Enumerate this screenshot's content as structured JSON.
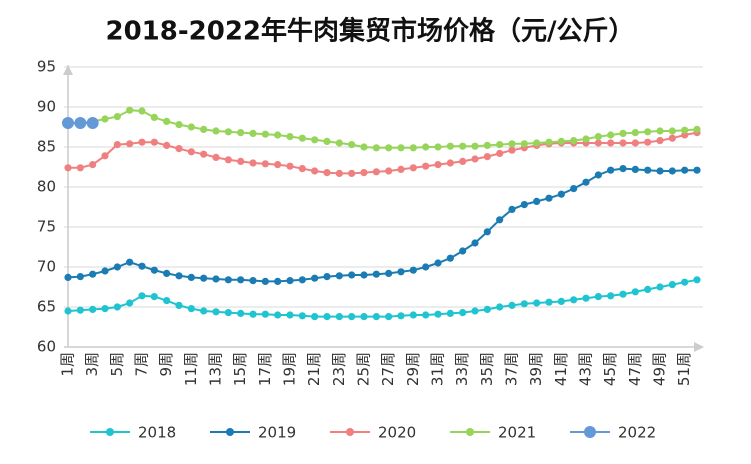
{
  "chart_data": {
    "type": "line",
    "title": "2018-2022年牛肉集贸市场价格（元/公斤）",
    "categories": [
      "1周",
      null,
      "3周",
      null,
      "5周",
      null,
      "7周",
      null,
      "9周",
      null,
      "11周",
      null,
      "13周",
      null,
      "15周",
      null,
      "17周",
      null,
      "19周",
      null,
      "21周",
      null,
      "23周",
      null,
      "25周",
      null,
      "27周",
      null,
      "29周",
      null,
      "31周",
      null,
      "33周",
      null,
      "35周",
      null,
      "37周",
      null,
      "39周",
      null,
      "41周",
      null,
      "43周",
      null,
      "45周",
      null,
      "47周",
      null,
      "49周",
      null,
      "51周",
      null
    ],
    "series": [
      {
        "name": "2018",
        "color": "#1fc4d0",
        "values": [
          64.5,
          64.6,
          64.7,
          64.8,
          65.0,
          65.5,
          66.4,
          66.3,
          65.8,
          65.2,
          64.8,
          64.5,
          64.4,
          64.3,
          64.2,
          64.1,
          64.1,
          64.0,
          64.0,
          63.9,
          63.8,
          63.8,
          63.8,
          63.8,
          63.8,
          63.8,
          63.8,
          63.9,
          64.0,
          64.0,
          64.1,
          64.2,
          64.3,
          64.5,
          64.7,
          65.0,
          65.2,
          65.4,
          65.5,
          65.6,
          65.7,
          65.9,
          66.1,
          66.3,
          66.4,
          66.6,
          66.9,
          67.2,
          67.5,
          67.8,
          68.1,
          68.4
        ]
      },
      {
        "name": "2019",
        "color": "#1b7bb3",
        "values": [
          68.7,
          68.8,
          69.1,
          69.5,
          70.0,
          70.6,
          70.1,
          69.6,
          69.2,
          68.9,
          68.7,
          68.6,
          68.5,
          68.4,
          68.4,
          68.3,
          68.2,
          68.2,
          68.3,
          68.4,
          68.6,
          68.8,
          68.9,
          69.0,
          69.0,
          69.1,
          69.2,
          69.4,
          69.6,
          70.0,
          70.5,
          71.1,
          72.0,
          73.0,
          74.4,
          75.9,
          77.2,
          77.8,
          78.2,
          78.6,
          79.1,
          79.8,
          80.6,
          81.5,
          82.1,
          82.3,
          82.2,
          82.1,
          82.0,
          82.0,
          82.1,
          82.1
        ]
      },
      {
        "name": "2020",
        "color": "#f08080",
        "values": [
          82.4,
          82.4,
          82.8,
          83.9,
          85.3,
          85.4,
          85.6,
          85.6,
          85.2,
          84.8,
          84.4,
          84.1,
          83.7,
          83.4,
          83.2,
          83.0,
          82.9,
          82.8,
          82.6,
          82.3,
          82.0,
          81.8,
          81.7,
          81.7,
          81.8,
          81.9,
          82.0,
          82.2,
          82.4,
          82.6,
          82.8,
          83.0,
          83.2,
          83.5,
          83.8,
          84.2,
          84.6,
          84.9,
          85.2,
          85.4,
          85.5,
          85.5,
          85.5,
          85.5,
          85.5,
          85.5,
          85.5,
          85.6,
          85.8,
          86.1,
          86.5,
          86.8
        ]
      },
      {
        "name": "2021",
        "color": "#97d45a",
        "values": [
          87.9,
          88.0,
          88.2,
          88.5,
          88.8,
          89.6,
          89.5,
          88.7,
          88.2,
          87.8,
          87.5,
          87.2,
          87.0,
          86.9,
          86.8,
          86.7,
          86.6,
          86.5,
          86.3,
          86.1,
          85.9,
          85.7,
          85.5,
          85.3,
          85.0,
          84.9,
          84.9,
          84.9,
          84.9,
          85.0,
          85.0,
          85.1,
          85.1,
          85.1,
          85.2,
          85.3,
          85.4,
          85.4,
          85.5,
          85.6,
          85.7,
          85.8,
          86.0,
          86.3,
          86.5,
          86.7,
          86.8,
          86.9,
          87.0,
          87.0,
          87.1,
          87.2
        ]
      },
      {
        "name": "2022",
        "color": "#6399d6",
        "values": [
          88.0,
          88.0,
          88.0,
          null,
          null,
          null,
          null,
          null,
          null,
          null,
          null,
          null,
          null,
          null,
          null,
          null,
          null,
          null,
          null,
          null,
          null,
          null,
          null,
          null,
          null,
          null,
          null,
          null,
          null,
          null,
          null,
          null,
          null,
          null,
          null,
          null,
          null,
          null,
          null,
          null,
          null,
          null,
          null,
          null,
          null,
          null,
          null,
          null,
          null,
          null,
          null,
          null
        ]
      }
    ],
    "ylim": [
      60,
      95
    ],
    "yticks": [
      60,
      65,
      70,
      75,
      80,
      85,
      90,
      95
    ],
    "grid": true,
    "legend": "bottom"
  }
}
